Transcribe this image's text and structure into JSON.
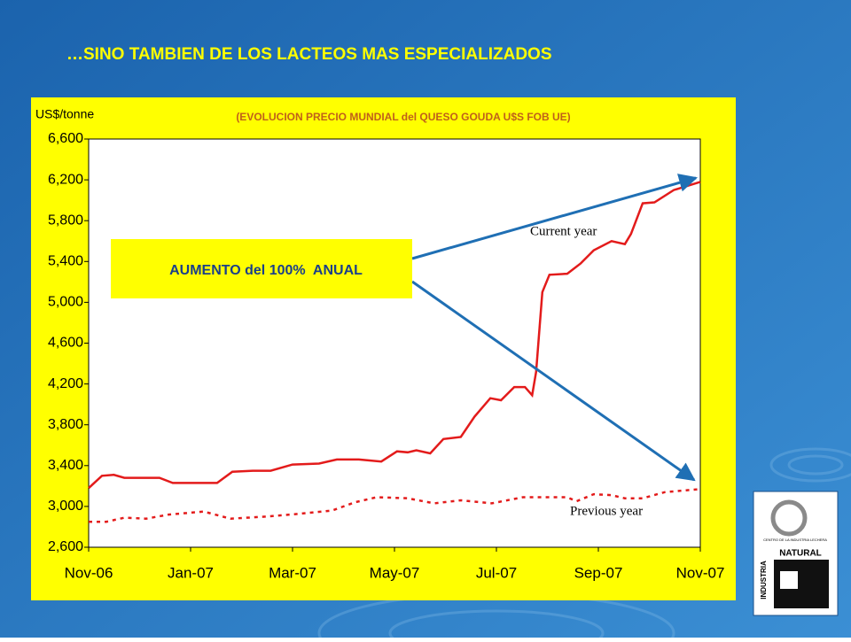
{
  "title": "…SINO TAMBIEN DE LOS LACTEOS MAS ESPECIALIZADOS",
  "chart_data": {
    "type": "line",
    "title": "(EVOLUCION  PRECIO MUNDIAL del QUESO GOUDA U$S FOB UE)",
    "y_label": "US$/tonne",
    "annotation": "AUMENTO del 100%  ANUAL",
    "xlim": [
      0,
      12
    ],
    "xticks": [
      {
        "value": 0,
        "label": "Nov-06"
      },
      {
        "value": 2,
        "label": "Jan-07"
      },
      {
        "value": 4,
        "label": "Mar-07"
      },
      {
        "value": 6,
        "label": "May-07"
      },
      {
        "value": 8,
        "label": "Jul-07"
      },
      {
        "value": 10,
        "label": "Sep-07"
      },
      {
        "value": 12,
        "label": "Nov-07"
      }
    ],
    "ylim": [
      2600,
      6600
    ],
    "yticks": [
      {
        "value": 2600,
        "label": "2,600"
      },
      {
        "value": 3000,
        "label": "3,000"
      },
      {
        "value": 3400,
        "label": "3,400"
      },
      {
        "value": 3800,
        "label": "3,800"
      },
      {
        "value": 4200,
        "label": "4,200"
      },
      {
        "value": 4600,
        "label": "4,600"
      },
      {
        "value": 5000,
        "label": "5,000"
      },
      {
        "value": 5400,
        "label": "5,400"
      },
      {
        "value": 5800,
        "label": "5,800"
      },
      {
        "value": 6200,
        "label": "6,200"
      },
      {
        "value": 6600,
        "label": "6,600"
      }
    ],
    "grid": false,
    "series": [
      {
        "name": "Current year",
        "color": "#e31b1b",
        "dash": false,
        "x": [
          0,
          0.26,
          0.49,
          0.7,
          1.39,
          1.65,
          2.52,
          2.82,
          3.22,
          3.57,
          4.0,
          4.52,
          4.87,
          5.3,
          5.74,
          6.05,
          6.26,
          6.43,
          6.7,
          6.96,
          7.3,
          7.57,
          7.88,
          8.09,
          8.35,
          8.56,
          8.7,
          8.78,
          8.9,
          9.04,
          9.39,
          9.65,
          9.91,
          10.26,
          10.52,
          10.64,
          10.87,
          11.1,
          11.48,
          12
        ],
        "values": [
          3180,
          3300,
          3310,
          3280,
          3280,
          3230,
          3230,
          3340,
          3350,
          3350,
          3410,
          3420,
          3460,
          3460,
          3440,
          3540,
          3530,
          3550,
          3520,
          3660,
          3680,
          3880,
          4060,
          4040,
          4170,
          4170,
          4090,
          4320,
          5100,
          5270,
          5280,
          5380,
          5510,
          5600,
          5570,
          5670,
          5970,
          5980,
          6100,
          6180
        ]
      },
      {
        "name": "Previous year",
        "color": "#e31b1b",
        "dash": true,
        "x": [
          0,
          0.35,
          0.7,
          1.13,
          1.57,
          2.26,
          2.78,
          3.48,
          4.17,
          4.78,
          5.22,
          5.65,
          6.26,
          6.78,
          7.3,
          7.91,
          8.52,
          9.39,
          9.57,
          9.91,
          10.26,
          10.52,
          10.87,
          11.3,
          12
        ],
        "values": [
          2850,
          2850,
          2890,
          2880,
          2920,
          2950,
          2880,
          2900,
          2930,
          2960,
          3040,
          3090,
          3080,
          3030,
          3060,
          3030,
          3090,
          3090,
          3050,
          3120,
          3110,
          3080,
          3080,
          3140,
          3170
        ]
      }
    ]
  },
  "logo": {
    "top": "CENTRO DE LA INDUSTRIA LECHERA",
    "word": "NATURAL",
    "side": "INDUSTRIA"
  }
}
